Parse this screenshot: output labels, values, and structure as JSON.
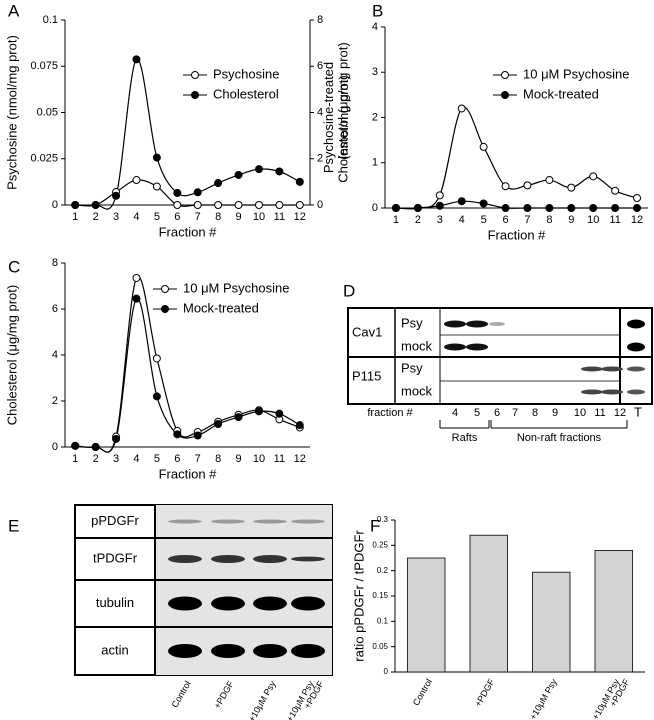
{
  "chart_data": [
    {
      "type": "line",
      "panel": "A",
      "categories": [
        "1",
        "2",
        "3",
        "4",
        "5",
        "6",
        "7",
        "8",
        "9",
        "10",
        "11",
        "12"
      ],
      "xlabel": "Fraction #",
      "ylabel": "Psychosine (nmol/mg prot)",
      "y2label": "Cholesterol (μg/mg prot)",
      "ylim": [
        0,
        0.1
      ],
      "yticks": [
        0,
        0.025,
        0.05,
        0.075,
        0.1
      ],
      "y2lim": [
        0,
        8
      ],
      "y2ticks": [
        0,
        2,
        4,
        6,
        8
      ],
      "legend": "upper right",
      "series": [
        {
          "name": "Psychosine",
          "color": "#000000",
          "marker": "open",
          "values": [
            0,
            0,
            0.007,
            0.0135,
            0.01,
            0,
            0,
            0,
            0,
            0,
            0,
            0
          ]
        },
        {
          "name": "Cholesterol",
          "color": "#000000",
          "marker": "filled",
          "axis": "y2",
          "values": [
            0,
            0,
            0.4,
            6.3,
            2.05,
            0.52,
            0.55,
            0.95,
            1.3,
            1.55,
            1.45,
            1.0
          ]
        }
      ]
    },
    {
      "type": "line",
      "panel": "B",
      "categories": [
        "1",
        "2",
        "3",
        "4",
        "5",
        "6",
        "7",
        "8",
        "9",
        "10",
        "11",
        "12"
      ],
      "xlabel": "Fraction #",
      "ylabel": [
        "Psychosine-treated",
        "(nmol/mg prot)"
      ],
      "ylim": [
        0,
        4
      ],
      "yticks": [
        0,
        1,
        2,
        3,
        4
      ],
      "legend": "upper right",
      "series": [
        {
          "name": "10 μM Psychosine",
          "color": "#000000",
          "marker": "open",
          "values": [
            0,
            0,
            0.28,
            2.2,
            1.35,
            0.48,
            0.5,
            0.62,
            0.45,
            0.7,
            0.38,
            0.22
          ]
        },
        {
          "name": "Mock-treated",
          "color": "#000000",
          "marker": "filled",
          "values": [
            0,
            0,
            0.05,
            0.15,
            0.1,
            0,
            0,
            0,
            0,
            0,
            0,
            0
          ]
        }
      ]
    },
    {
      "type": "line",
      "panel": "C",
      "categories": [
        "1",
        "2",
        "3",
        "4",
        "5",
        "6",
        "7",
        "8",
        "9",
        "10",
        "11",
        "12"
      ],
      "xlabel": "Fraction #",
      "ylabel": "Cholesterol (μg/mg prot)",
      "ylim": [
        0,
        8
      ],
      "yticks": [
        0,
        2,
        4,
        6,
        8
      ],
      "legend": "upper right",
      "series": [
        {
          "name": "10 μM Psychosine",
          "color": "#000000",
          "marker": "open",
          "values": [
            0.05,
            0,
            0.45,
            7.35,
            3.85,
            0.7,
            0.65,
            1.1,
            1.4,
            1.6,
            1.2,
            0.85
          ]
        },
        {
          "name": "Mock-treated",
          "color": "#000000",
          "marker": "filled",
          "values": [
            0.05,
            0,
            0.35,
            6.45,
            2.2,
            0.55,
            0.5,
            1.0,
            1.3,
            1.55,
            1.45,
            0.95
          ]
        }
      ]
    },
    {
      "type": "bar",
      "panel": "F",
      "categories": [
        "Control",
        "+PDGF",
        "+10μM Psy",
        [
          "+10μM Psy",
          "+PDGF"
        ]
      ],
      "ylabel": "ratio pPDGFr / tPDGFr",
      "ylim": [
        0,
        0.3
      ],
      "yticks": [
        0,
        0.05,
        0.1,
        0.15,
        0.2,
        0.25,
        0.3
      ],
      "color": "#d3d3d3",
      "values": [
        0.225,
        0.27,
        0.197,
        0.24
      ]
    }
  ],
  "blots": [
    {
      "panel": "D",
      "rows": [
        {
          "label": "Cav1",
          "sub": [
            "Psy",
            "mock"
          ]
        },
        {
          "label": "P115",
          "sub": [
            "Psy",
            "mock"
          ]
        }
      ],
      "axis_label": "fraction #",
      "lanes": [
        "4",
        "5",
        "6",
        "7",
        "8",
        "9",
        "10",
        "11",
        "12"
      ],
      "total_lane": "T",
      "groups": [
        "Rafts",
        "Non-raft fractions"
      ]
    },
    {
      "panel": "E",
      "rows": [
        "pPDGFr",
        "tPDGFr",
        "tubulin",
        "actin"
      ],
      "lanes": [
        "Control",
        "+PDGF",
        "+10μM Psy",
        [
          "+10μM Psy",
          "+PDGF"
        ]
      ]
    }
  ]
}
